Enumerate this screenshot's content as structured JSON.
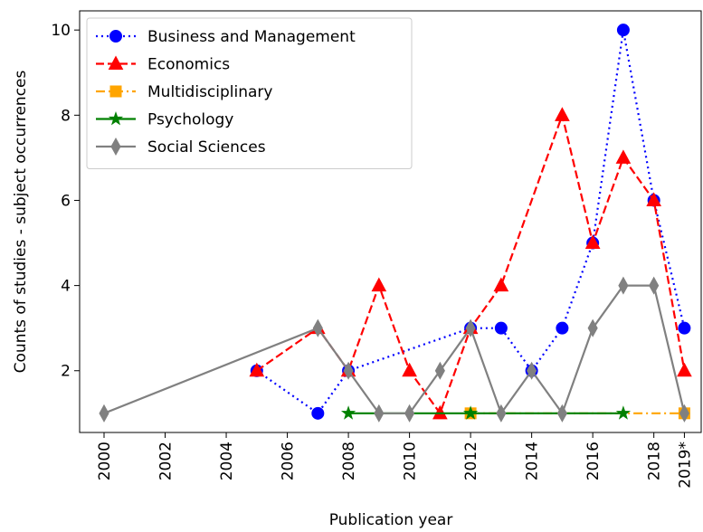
{
  "chart_data": {
    "type": "line",
    "xlabel": "Publication year",
    "ylabel": "Counts of studies - subject occurrences",
    "xlim": [
      1999.2,
      2019.55
    ],
    "ylim": [
      0.55,
      10.45
    ],
    "xticks": [
      2000,
      2002,
      2004,
      2006,
      2008,
      2010,
      2012,
      2014,
      2016,
      2018,
      {
        "value": 2019,
        "label": "2019*"
      }
    ],
    "yticks": [
      2,
      4,
      6,
      8,
      10
    ],
    "legend": "upper left",
    "series": [
      {
        "name": "Business and Management",
        "color": "#0000ff",
        "marker": "circle",
        "linestyle": "dotted",
        "x": [
          2005,
          2007,
          2008,
          2012,
          2013,
          2014,
          2015,
          2016,
          2017,
          2018,
          2019
        ],
        "values": [
          2,
          1,
          2,
          3,
          3,
          2,
          3,
          5,
          10,
          6,
          3
        ]
      },
      {
        "name": "Economics",
        "color": "#ff0000",
        "marker": "triangle",
        "linestyle": "dashed",
        "x": [
          2005,
          2007,
          2008,
          2009,
          2010,
          2011,
          2012,
          2013,
          2015,
          2016,
          2017,
          2018,
          2019
        ],
        "values": [
          2,
          3,
          2,
          4,
          2,
          1,
          3,
          4,
          8,
          5,
          7,
          6,
          2
        ]
      },
      {
        "name": "Multidisciplinary",
        "color": "#ffa500",
        "marker": "square",
        "linestyle": "dashdot",
        "x": [
          2012,
          2019
        ],
        "values": [
          1,
          1
        ]
      },
      {
        "name": "Psychology",
        "color": "#008000",
        "marker": "star",
        "linestyle": "solid",
        "x": [
          2008,
          2012,
          2017
        ],
        "values": [
          1,
          1,
          1
        ]
      },
      {
        "name": "Social Sciences",
        "color": "#808080",
        "marker": "diamond",
        "linestyle": "solid",
        "x": [
          2000,
          2007,
          2008,
          2009,
          2010,
          2011,
          2012,
          2013,
          2014,
          2015,
          2016,
          2017,
          2018,
          2019
        ],
        "values": [
          1,
          3,
          2,
          1,
          1,
          2,
          3,
          1,
          2,
          1,
          3,
          4,
          4,
          1
        ]
      }
    ]
  }
}
